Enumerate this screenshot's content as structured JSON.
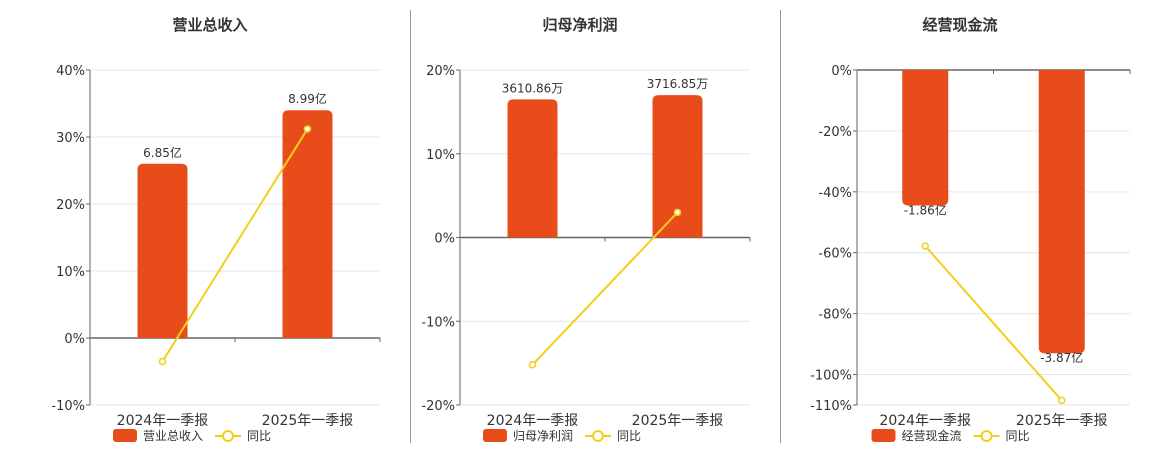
{
  "colors": {
    "bar": "#e84c1b",
    "line": "#f2d01a",
    "axis": "#666666",
    "grid": "#e6e6e6",
    "text": "#333333"
  },
  "chart_data": [
    {
      "type": "bar",
      "title": "营业总收入",
      "categories": [
        "2024年一季报",
        "2025年一季报"
      ],
      "series": [
        {
          "name": "营业总收入",
          "values": [
            6.85,
            8.99
          ],
          "value_labels": [
            "6.85亿",
            "8.99亿"
          ],
          "bar_yoy_pct": [
            26.0,
            34.0
          ]
        },
        {
          "name": "同比",
          "type": "line",
          "values": [
            -3.5,
            31.2
          ]
        }
      ],
      "yaxis": {
        "ylim": [
          -10,
          40
        ],
        "ticks": [
          40,
          30,
          20,
          10,
          0,
          -10
        ],
        "tick_labels": [
          "40%",
          "30%",
          "20%",
          "10%",
          "0%",
          "-10%"
        ]
      },
      "legend": "bottom-center"
    },
    {
      "type": "bar",
      "title": "归母净利润",
      "categories": [
        "2024年一季报",
        "2025年一季报"
      ],
      "series": [
        {
          "name": "归母净利润",
          "values": [
            3610.86,
            3716.85
          ],
          "value_labels": [
            "3610.86万",
            "3716.85万"
          ],
          "bar_yoy_pct": [
            16.5,
            17.0
          ]
        },
        {
          "name": "同比",
          "type": "line",
          "values": [
            -15.2,
            3.0
          ]
        }
      ],
      "yaxis": {
        "ylim": [
          -20,
          20
        ],
        "ticks": [
          20,
          10,
          0,
          -10,
          -20
        ],
        "tick_labels": [
          "20%",
          "10%",
          "0%",
          "-10%",
          "-20%"
        ]
      },
      "legend": "bottom-center"
    },
    {
      "type": "bar",
      "title": "经营现金流",
      "categories": [
        "2024年一季报",
        "2025年一季报"
      ],
      "series": [
        {
          "name": "经营现金流",
          "values": [
            -1.86,
            -3.87
          ],
          "value_labels": [
            "-1.86亿",
            "-3.87亿"
          ],
          "bar_yoy_pct": [
            -44.5,
            -93.0
          ]
        },
        {
          "name": "同比",
          "type": "line",
          "values": [
            -57.8,
            -108.5
          ]
        }
      ],
      "yaxis": {
        "ylim": [
          -110,
          0
        ],
        "ticks": [
          0,
          -20,
          -40,
          -60,
          -80,
          -100,
          -110
        ],
        "tick_labels": [
          "0%",
          "-20%",
          "-40%",
          "-60%",
          "-80%",
          "-100%",
          "-110%"
        ]
      },
      "legend": "bottom-center"
    }
  ]
}
